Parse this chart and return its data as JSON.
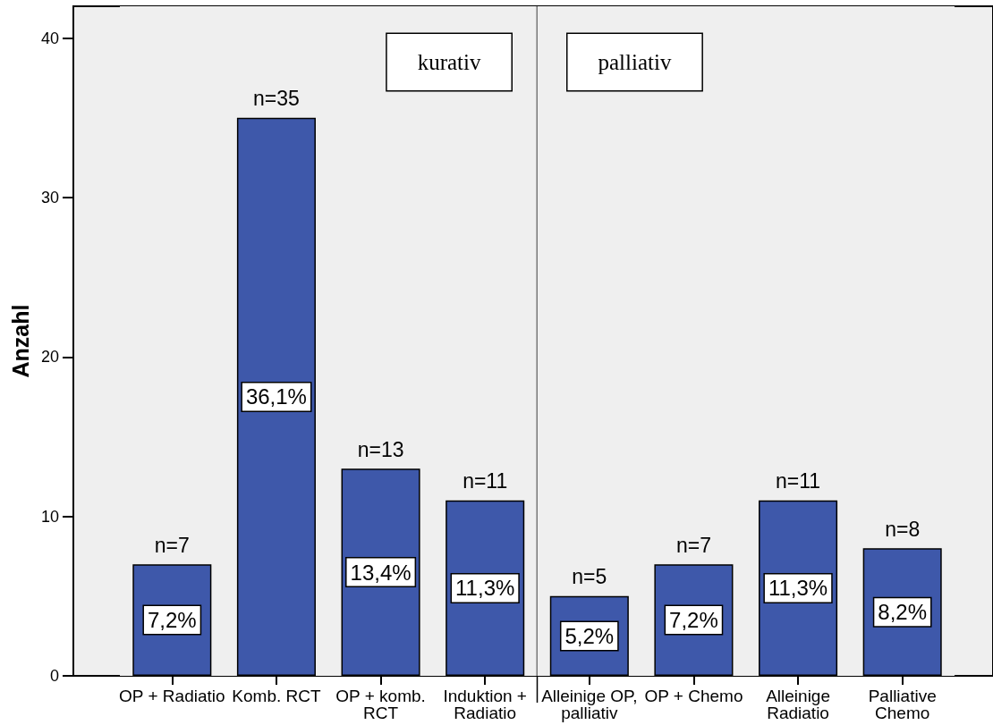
{
  "chart_data": {
    "type": "bar",
    "ylabel": "Anzahl",
    "categories": [
      "OP + Radiatio",
      "Komb. RCT",
      "OP + komb.\nRCT",
      "Induktion +\nRadiatio",
      "Alleinige OP,\npalliativ",
      "OP + Chemo",
      "Alleinige\nRadiatio",
      "Palliative\nChemo"
    ],
    "values": [
      7,
      35,
      13,
      11,
      5,
      7,
      11,
      8
    ],
    "color": "#3e58aa",
    "value_labels": [
      "n=7",
      "n=35",
      "n=13",
      "n=11",
      "n=5",
      "n=7",
      "n=11",
      "n=8"
    ],
    "ylim": [
      0,
      42
    ],
    "yticks": [
      0,
      10,
      20,
      30,
      40
    ],
    "bands": [
      {
        "axis": "x",
        "from": "OP + Radiatio",
        "to": "Induktion +\nRadiatio",
        "label": "kurativ",
        "color": "#efefef"
      },
      {
        "axis": "x",
        "from": "Alleinige OP,\npalliativ",
        "to": "Palliative\nChemo",
        "label": "palliativ",
        "color": "#efefef"
      }
    ],
    "annotations": [
      "7,2%",
      "36,1%",
      "13,4%",
      "11,3%",
      "5,2%",
      "7,2%",
      "11,3%",
      "8,2%"
    ]
  }
}
